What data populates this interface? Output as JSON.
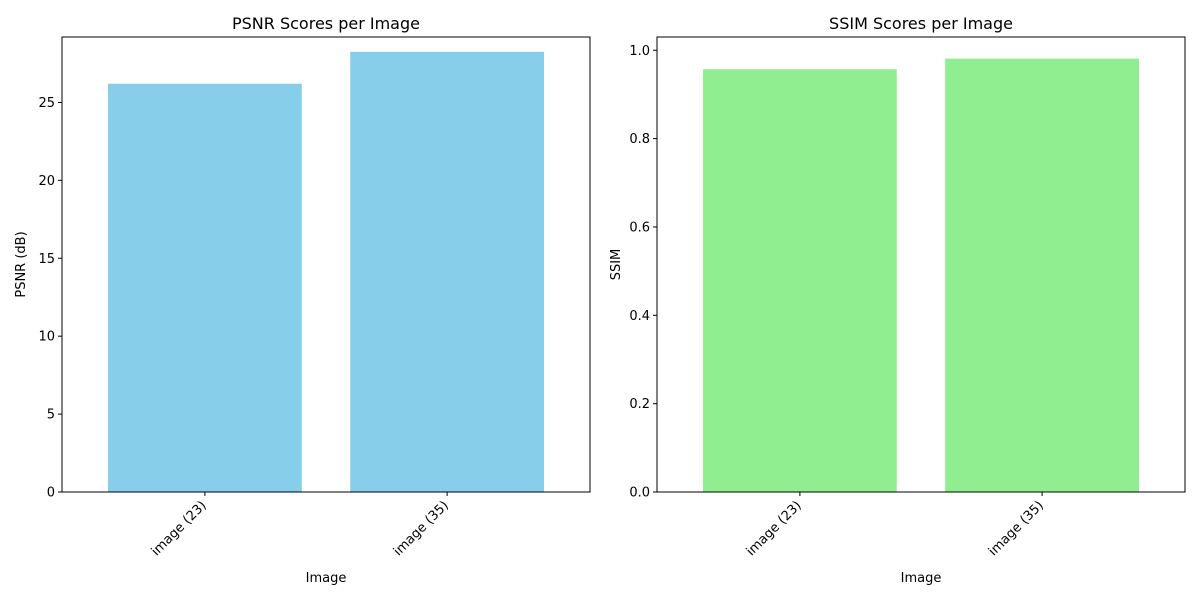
{
  "chart_data": [
    {
      "type": "bar",
      "title": "PSNR Scores per Image",
      "xlabel": "Image",
      "ylabel": "PSNR (dB)",
      "categories": [
        "image (23)",
        "image (35)"
      ],
      "values": [
        26.2,
        28.25
      ],
      "ylim": [
        0,
        29.2
      ],
      "yticks": [
        0,
        5,
        10,
        15,
        20,
        25
      ],
      "ytick_labels": [
        "0",
        "5",
        "10",
        "15",
        "20",
        "25"
      ],
      "bar_color": "#87ceeb",
      "grid": false
    },
    {
      "type": "bar",
      "title": "SSIM Scores per Image",
      "xlabel": "Image",
      "ylabel": "SSIM",
      "categories": [
        "image (23)",
        "image (35)"
      ],
      "values": [
        0.957,
        0.981
      ],
      "ylim": [
        0,
        1.03
      ],
      "yticks": [
        0,
        0.2,
        0.4,
        0.6,
        0.8,
        1.0
      ],
      "ytick_labels": [
        "0.0",
        "0.2",
        "0.4",
        "0.6",
        "0.8",
        "1.0"
      ],
      "bar_color": "#90ee90",
      "grid": false
    }
  ]
}
